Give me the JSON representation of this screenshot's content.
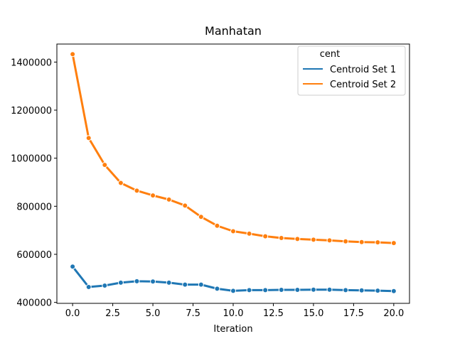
{
  "chart_data": {
    "type": "line",
    "title": "Manhatan",
    "xlabel": "Iteration",
    "ylabel": "",
    "xlim": [
      -0.98,
      20.98
    ],
    "ylim": [
      396000,
      1475000
    ],
    "xticks": [
      0.0,
      2.5,
      5.0,
      7.5,
      10.0,
      12.5,
      15.0,
      17.5,
      20.0
    ],
    "xtick_labels": [
      "0.0",
      "2.5",
      "5.0",
      "7.5",
      "10.0",
      "12.5",
      "15.0",
      "17.5",
      "20.0"
    ],
    "yticks": [
      400000,
      600000,
      800000,
      1000000,
      1200000,
      1400000
    ],
    "ytick_labels": [
      "400000",
      "600000",
      "800000",
      "1000000",
      "1200000",
      "1400000"
    ],
    "grid": false,
    "legend": {
      "title": "cent",
      "placement": "top-right"
    },
    "x": [
      0,
      1,
      2,
      3,
      4,
      5,
      6,
      7,
      8,
      9,
      10,
      11,
      12,
      13,
      14,
      15,
      16,
      17,
      18,
      19,
      20
    ],
    "series": [
      {
        "name": "Centroid Set 1",
        "color": "#1f77b4",
        "values": [
          549000,
          464000,
          470000,
          482000,
          488000,
          487000,
          482000,
          474000,
          474000,
          457000,
          448000,
          451000,
          451000,
          452000,
          452000,
          453000,
          453000,
          451000,
          450000,
          449000,
          447000
        ]
      },
      {
        "name": "Centroid Set 2",
        "color": "#ff7f0e",
        "values": [
          1433000,
          1084000,
          972000,
          897000,
          865000,
          845000,
          828000,
          803000,
          756000,
          719000,
          696000,
          686000,
          675000,
          668000,
          664000,
          661000,
          658000,
          654000,
          651000,
          650000,
          647000
        ]
      }
    ]
  }
}
